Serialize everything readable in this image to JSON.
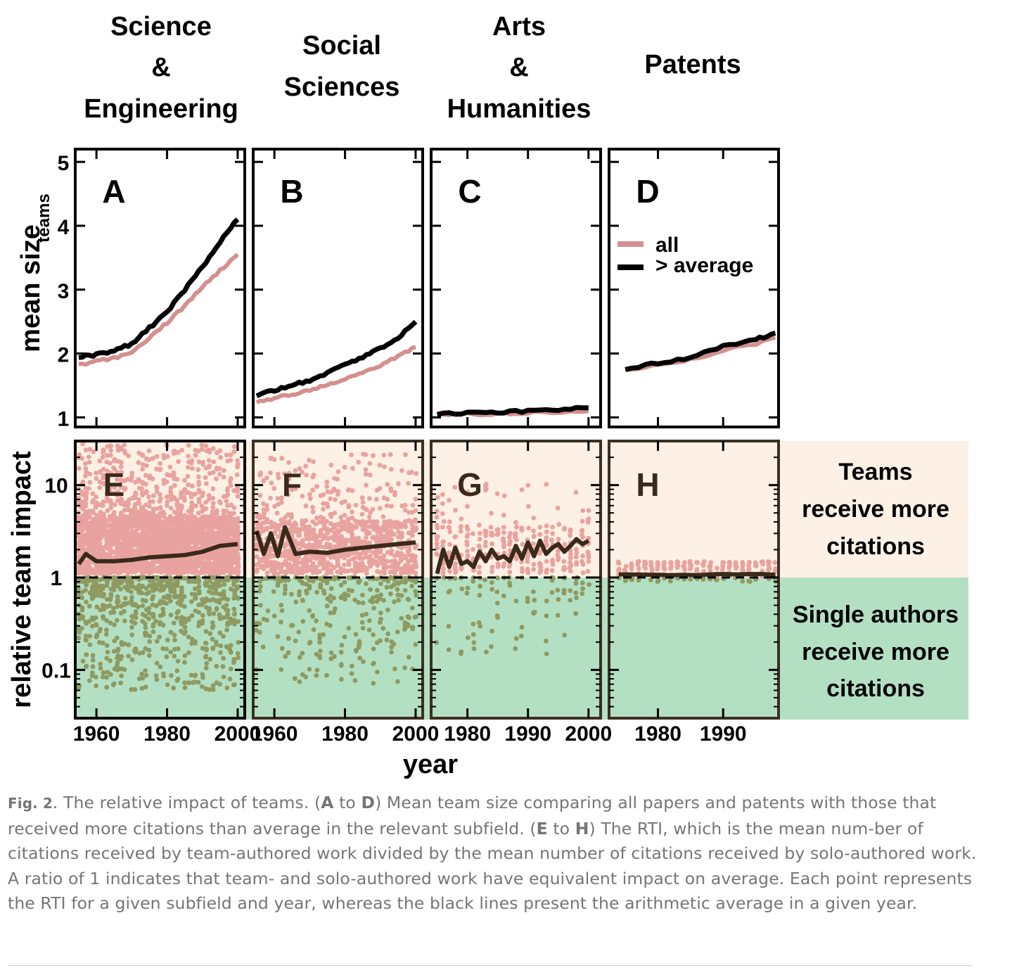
{
  "figure": {
    "columns": [
      {
        "title_lines": [
          "Science",
          "&",
          "Engineering"
        ]
      },
      {
        "title_lines": [
          "Social",
          "Sciences"
        ]
      },
      {
        "title_lines": [
          "Arts",
          "&",
          "Humanities"
        ]
      },
      {
        "title_lines": [
          "Patents"
        ]
      }
    ],
    "xlabel": "year",
    "top_ylabel": "mean size",
    "top_ylabel_sub": "teams",
    "bottom_ylabel": "relative team impact",
    "legend": {
      "all": "all",
      "above": "> average"
    },
    "region_labels": {
      "teams": [
        "Teams",
        "receive more",
        "citations"
      ],
      "single": [
        "Single authors",
        "receive more",
        "citations"
      ]
    },
    "colors": {
      "all_line": "#d4908e",
      "above_line": "#000000",
      "impact_line": "#3a2a1c",
      "teams_bg": "#fdf0e4",
      "single_bg": "#b3e0c2",
      "team_points": "#e9a39f",
      "single_points": "#8f9a62"
    }
  },
  "chart_data": [
    {
      "panel": "A",
      "type": "line",
      "xlim": [
        1954,
        2002
      ],
      "xticks": [
        1960,
        1980,
        2000
      ],
      "ylim": [
        0.85,
        5.2
      ],
      "yticks": [
        1,
        2,
        3,
        4,
        5
      ],
      "series": [
        {
          "name": "all",
          "x": [
            1955,
            1960,
            1965,
            1970,
            1975,
            1980,
            1985,
            1990,
            1995,
            2000
          ],
          "values": [
            1.82,
            1.88,
            1.93,
            2.02,
            2.25,
            2.48,
            2.75,
            3.05,
            3.3,
            3.55
          ]
        },
        {
          "name": "> average",
          "x": [
            1955,
            1960,
            1965,
            1970,
            1975,
            1980,
            1985,
            1990,
            1995,
            2000
          ],
          "values": [
            1.95,
            1.98,
            2.05,
            2.15,
            2.4,
            2.65,
            3.0,
            3.35,
            3.75,
            4.1
          ]
        }
      ]
    },
    {
      "panel": "B",
      "type": "line",
      "xlim": [
        1954,
        2002
      ],
      "xticks": [
        1960,
        1980,
        2000
      ],
      "ylim": [
        0.85,
        5.2
      ],
      "yticks": [
        1,
        2,
        3,
        4,
        5
      ],
      "series": [
        {
          "name": "all",
          "x": [
            1955,
            1960,
            1965,
            1970,
            1975,
            1980,
            1985,
            1990,
            1995,
            2000
          ],
          "values": [
            1.25,
            1.3,
            1.36,
            1.43,
            1.51,
            1.6,
            1.7,
            1.82,
            1.95,
            2.1
          ]
        },
        {
          "name": "> average",
          "x": [
            1955,
            1960,
            1965,
            1970,
            1975,
            1980,
            1985,
            1990,
            1995,
            2000
          ],
          "values": [
            1.35,
            1.42,
            1.5,
            1.58,
            1.7,
            1.82,
            1.95,
            2.08,
            2.25,
            2.5
          ]
        }
      ]
    },
    {
      "panel": "C",
      "type": "line",
      "xlim": [
        1974,
        2002
      ],
      "xticks": [
        1980,
        1990,
        2000
      ],
      "ylim": [
        0.85,
        5.2
      ],
      "yticks": [
        1,
        2,
        3,
        4,
        5
      ],
      "series": [
        {
          "name": "all",
          "x": [
            1975,
            1980,
            1985,
            1990,
            1995,
            2000
          ],
          "values": [
            1.04,
            1.05,
            1.06,
            1.07,
            1.08,
            1.1
          ]
        },
        {
          "name": "> average",
          "x": [
            1975,
            1980,
            1985,
            1990,
            1995,
            2000
          ],
          "values": [
            1.06,
            1.07,
            1.08,
            1.1,
            1.12,
            1.15
          ]
        }
      ]
    },
    {
      "panel": "D",
      "type": "line",
      "xlim": [
        1972.5,
        1998.5
      ],
      "xticks": [
        1980,
        1990
      ],
      "ylim": [
        0.85,
        5.2
      ],
      "yticks": [
        1,
        2,
        3,
        4,
        5
      ],
      "series": [
        {
          "name": "all",
          "x": [
            1975,
            1980,
            1985,
            1990,
            1995,
            1998
          ],
          "values": [
            1.73,
            1.82,
            1.9,
            2.05,
            2.15,
            2.25
          ]
        },
        {
          "name": "> average",
          "x": [
            1975,
            1980,
            1985,
            1990,
            1995,
            1998
          ],
          "values": [
            1.75,
            1.85,
            1.93,
            2.12,
            2.22,
            2.32
          ]
        }
      ]
    },
    {
      "panel": "E",
      "type": "scatter",
      "xlim": [
        1954,
        2002
      ],
      "xticks": [
        1960,
        1980,
        2000
      ],
      "yscale": "log",
      "ylim": [
        0.03,
        30
      ],
      "yticks": [
        0.1,
        1,
        10
      ],
      "ytick_labels": [
        "0.1",
        "1",
        "10"
      ],
      "mean_line": {
        "x": [
          1955,
          1957,
          1960,
          1965,
          1970,
          1975,
          1980,
          1985,
          1990,
          1995,
          2000
        ],
        "values": [
          1.4,
          1.8,
          1.5,
          1.5,
          1.55,
          1.65,
          1.7,
          1.75,
          1.9,
          2.2,
          2.3
        ]
      },
      "team_band": [
        1.1,
        4.5
      ],
      "team_spread_max": 28,
      "single_spread_min": 0.06
    },
    {
      "panel": "F",
      "type": "scatter",
      "xlim": [
        1954,
        2002
      ],
      "xticks": [
        1960,
        1980,
        2000
      ],
      "yscale": "log",
      "ylim": [
        0.03,
        30
      ],
      "yticks": [
        0.1,
        1,
        10
      ],
      "ytick_labels": [
        "0.1",
        "1",
        "10"
      ],
      "mean_line": {
        "x": [
          1955,
          1957,
          1959,
          1961,
          1963,
          1966,
          1970,
          1975,
          1980,
          1985,
          1990,
          1995,
          2000
        ],
        "values": [
          3.2,
          1.8,
          3.0,
          1.7,
          3.5,
          1.8,
          1.9,
          1.85,
          2.0,
          2.1,
          2.2,
          2.3,
          2.4
        ]
      },
      "team_band": [
        1.1,
        4.0
      ],
      "team_spread_max": 22,
      "single_spread_min": 0.07
    },
    {
      "panel": "G",
      "type": "scatter",
      "xlim": [
        1974,
        2002
      ],
      "xticks": [
        1980,
        1990,
        2000
      ],
      "yscale": "log",
      "ylim": [
        0.03,
        30
      ],
      "yticks": [
        0.1,
        1,
        10
      ],
      "ytick_labels": [
        "0.1",
        "1",
        "10"
      ],
      "mean_line": {
        "x": [
          1975,
          1976,
          1977,
          1978,
          1979,
          1980,
          1981,
          1982,
          1983,
          1984,
          1985,
          1986,
          1987,
          1988,
          1989,
          1990,
          1991,
          1992,
          1993,
          1994,
          1995,
          1996,
          1997,
          1998,
          1999,
          2000
        ],
        "values": [
          1.1,
          2.0,
          1.3,
          2.1,
          1.4,
          1.5,
          1.3,
          1.9,
          1.5,
          2.0,
          1.6,
          1.7,
          1.5,
          2.2,
          1.6,
          2.4,
          1.7,
          2.5,
          1.8,
          2.1,
          2.3,
          1.9,
          2.2,
          2.6,
          2.3,
          2.5
        ]
      },
      "team_band": [
        1.1,
        3.5
      ],
      "team_spread_max": 12,
      "single_spread_min": 0.13
    },
    {
      "panel": "H",
      "type": "scatter",
      "xlim": [
        1972.5,
        1998.5
      ],
      "xticks": [
        1980,
        1990
      ],
      "yscale": "log",
      "ylim": [
        0.03,
        30
      ],
      "yticks": [
        0.1,
        1,
        10
      ],
      "ytick_labels": [
        "0.1",
        "1",
        "10"
      ],
      "mean_line": {
        "x": [
          1974,
          1976,
          1978,
          1980,
          1982,
          1984,
          1986,
          1988,
          1990,
          1992,
          1994,
          1996,
          1998
        ],
        "values": [
          1.08,
          1.08,
          1.07,
          1.07,
          1.06,
          1.07,
          1.06,
          1.08,
          1.09,
          1.08,
          1.09,
          1.09,
          1.07
        ]
      },
      "team_band": [
        1.02,
        1.45
      ],
      "team_spread_max": 1.5,
      "single_spread_min": 0.9
    }
  ],
  "caption": {
    "figlabel": "Fig. 2",
    "p0": ". The relative impact of teams. (",
    "b1": "A",
    "p1": " to ",
    "b2": "D",
    "p2": ") Mean team size comparing all papers and patents with those that received more citations than average in the relevant subfield. (",
    "b3": "E",
    "p3": " to ",
    "b4": "H",
    "p4": ") The RTI, which is the mean num-ber of citations received by team-authored work divided by the mean number of citations received by solo-authored work. A ratio of 1 indicates that team- and solo-authored work have equivalent impact on average. Each point represents the RTI for a given subfield and year, whereas the black lines present the arithmetic average in a given year."
  }
}
